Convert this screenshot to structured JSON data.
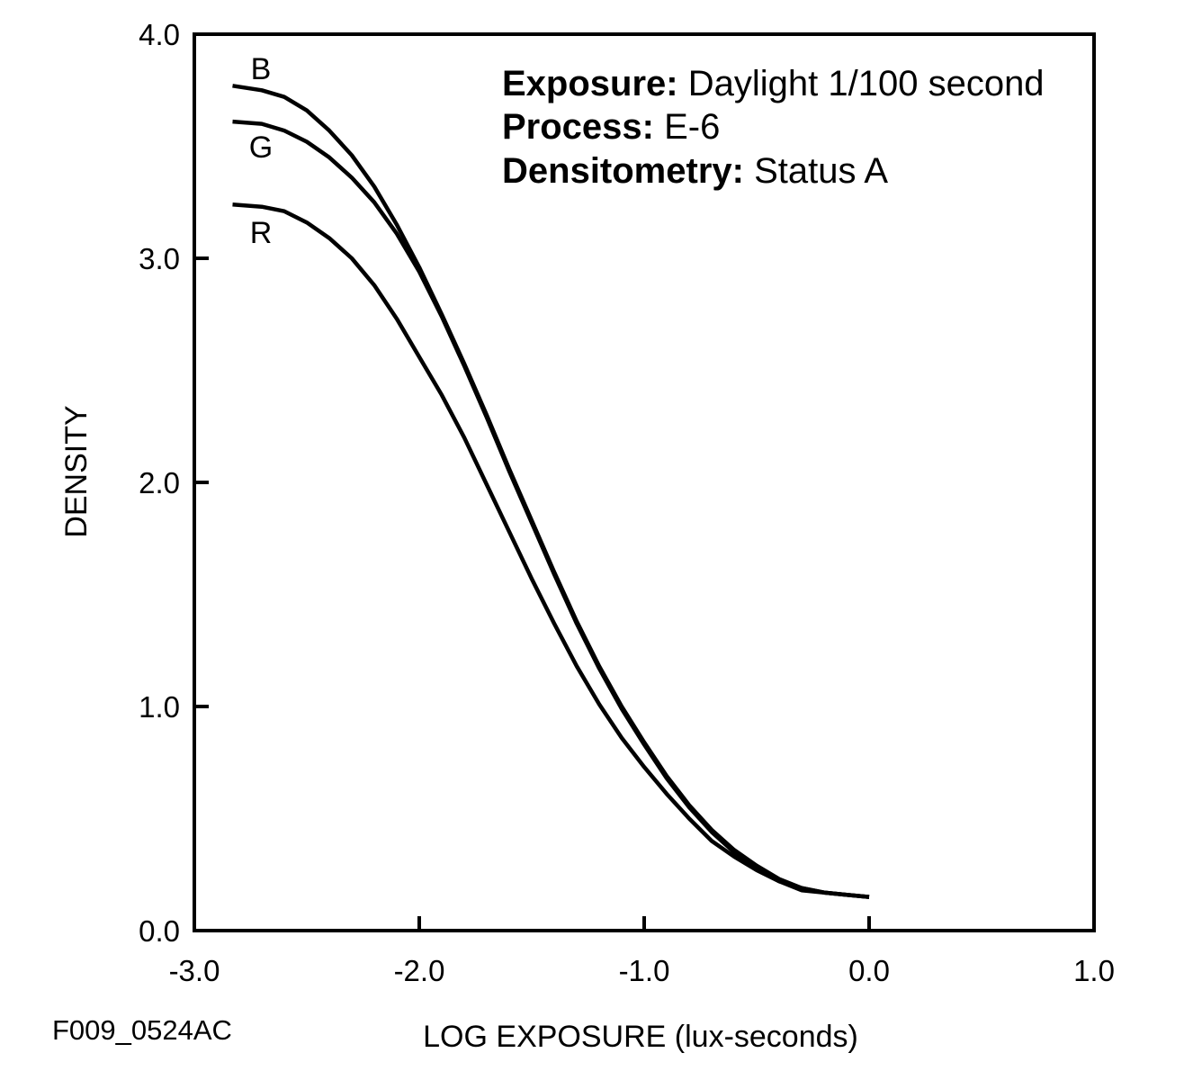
{
  "figure_id": "F009_0524AC",
  "info": [
    {
      "label": "Exposure:",
      "value": "Daylight 1/100 second"
    },
    {
      "label": "Process:",
      "value": "E-6"
    },
    {
      "label": "Densitometry:",
      "value": "Status A"
    }
  ],
  "chart_data": {
    "type": "line",
    "xlabel": "LOG EXPOSURE (lux-seconds)",
    "ylabel": "DENSITY",
    "xlim": [
      -3.0,
      1.0
    ],
    "ylim": [
      0.0,
      4.0
    ],
    "xticks": [
      -3.0,
      -2.0,
      -1.0,
      0.0,
      1.0
    ],
    "xtick_labels": [
      "-3.0",
      "-2.0",
      "-1.0",
      "0.0",
      "1.0"
    ],
    "yticks": [
      0.0,
      1.0,
      2.0,
      3.0,
      4.0
    ],
    "ytick_labels": [
      "0.0",
      "1.0",
      "2.0",
      "3.0",
      "4.0"
    ],
    "grid": false,
    "series": [
      {
        "name": "B",
        "color": "#000000",
        "x": [
          -2.83,
          -2.7,
          -2.6,
          -2.5,
          -2.4,
          -2.3,
          -2.2,
          -2.1,
          -2.0,
          -1.9,
          -1.8,
          -1.7,
          -1.6,
          -1.5,
          -1.4,
          -1.3,
          -1.2,
          -1.1,
          -1.0,
          -0.9,
          -0.8,
          -0.7,
          -0.6,
          -0.5,
          -0.4,
          -0.3,
          -0.2,
          -0.1,
          0.0
        ],
        "y": [
          3.77,
          3.75,
          3.72,
          3.66,
          3.57,
          3.46,
          3.32,
          3.15,
          2.96,
          2.75,
          2.53,
          2.3,
          2.06,
          1.83,
          1.6,
          1.38,
          1.18,
          1.0,
          0.84,
          0.69,
          0.56,
          0.45,
          0.36,
          0.29,
          0.23,
          0.19,
          0.17,
          0.16,
          0.15
        ]
      },
      {
        "name": "G",
        "color": "#000000",
        "x": [
          -2.83,
          -2.7,
          -2.6,
          -2.5,
          -2.4,
          -2.3,
          -2.2,
          -2.1,
          -2.0,
          -1.9,
          -1.8,
          -1.7,
          -1.6,
          -1.5,
          -1.4,
          -1.3,
          -1.2,
          -1.1,
          -1.0,
          -0.9,
          -0.8,
          -0.7,
          -0.6,
          -0.5,
          -0.4,
          -0.3,
          -0.2,
          -0.1,
          0.0
        ],
        "y": [
          3.61,
          3.6,
          3.57,
          3.52,
          3.45,
          3.36,
          3.25,
          3.11,
          2.94,
          2.74,
          2.52,
          2.29,
          2.05,
          1.82,
          1.59,
          1.37,
          1.17,
          0.99,
          0.83,
          0.68,
          0.55,
          0.44,
          0.35,
          0.28,
          0.22,
          0.18,
          0.17,
          0.16,
          0.15
        ]
      },
      {
        "name": "R",
        "color": "#000000",
        "x": [
          -2.83,
          -2.7,
          -2.6,
          -2.5,
          -2.4,
          -2.3,
          -2.2,
          -2.1,
          -2.0,
          -1.9,
          -1.8,
          -1.7,
          -1.6,
          -1.5,
          -1.4,
          -1.3,
          -1.2,
          -1.1,
          -1.0,
          -0.9,
          -0.8,
          -0.7,
          -0.6,
          -0.5,
          -0.4,
          -0.3,
          -0.2,
          -0.1,
          0.0
        ],
        "y": [
          3.24,
          3.23,
          3.21,
          3.16,
          3.09,
          3.0,
          2.88,
          2.73,
          2.56,
          2.39,
          2.2,
          1.99,
          1.78,
          1.57,
          1.37,
          1.18,
          1.01,
          0.86,
          0.73,
          0.61,
          0.5,
          0.4,
          0.33,
          0.27,
          0.22,
          0.19,
          0.17,
          0.16,
          0.15
        ]
      }
    ]
  }
}
